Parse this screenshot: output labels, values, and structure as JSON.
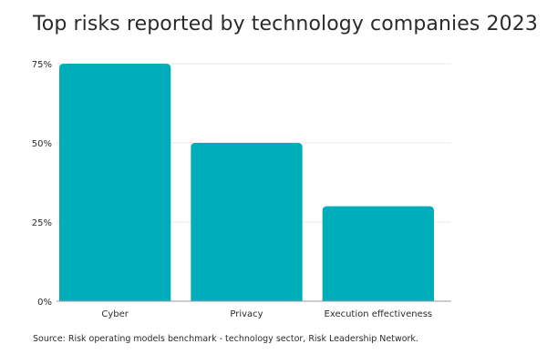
{
  "title": "Top risks reported by technology companies 2023",
  "source": "Source: Risk operating models benchmark - technology sector, Risk Leadership Network.",
  "colors": {
    "bar": "#00aebb",
    "grid": "#e8e8e8",
    "axis": "#9a9a9a",
    "text": "#2b2b2b"
  },
  "chart_data": {
    "type": "bar",
    "title": "Top risks reported by technology companies 2023",
    "categories": [
      "Cyber",
      "Privacy",
      "Execution effectiveness"
    ],
    "values": [
      75,
      50,
      30
    ],
    "unit": "%",
    "ylim": [
      0,
      75
    ],
    "yticks": [
      0,
      25,
      50,
      75
    ],
    "ytick_labels": [
      "0%",
      "25%",
      "50%",
      "75%"
    ],
    "xlabel": "",
    "ylabel": "",
    "grid": true,
    "legend": "none"
  }
}
